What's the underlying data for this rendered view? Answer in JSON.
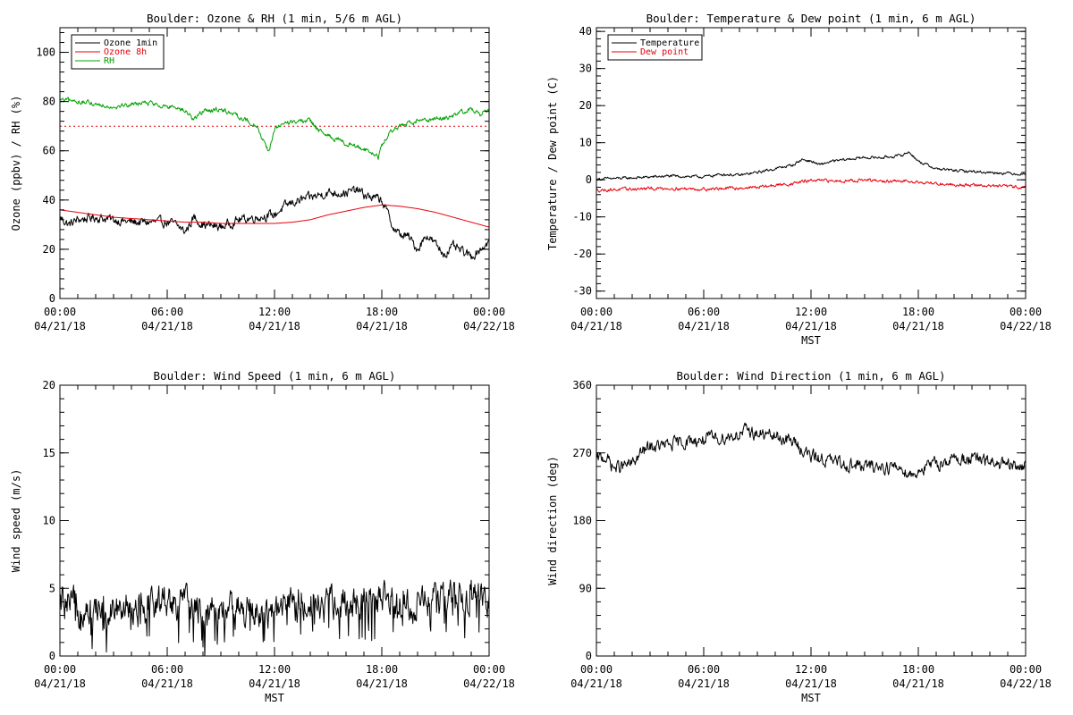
{
  "chart_data": [
    {
      "id": "ozone-rh",
      "type": "line",
      "title": "Boulder: Ozone & RH (1 min, 5/6 m AGL)",
      "xlabel": "",
      "ylabel": "Ozone (ppbv) / RH (%)",
      "xlim": [
        0,
        24
      ],
      "ylim": [
        0,
        110
      ],
      "x_ticks": [
        {
          "time": "00:00",
          "date": "04/21/18"
        },
        {
          "time": "06:00",
          "date": "04/21/18"
        },
        {
          "time": "12:00",
          "date": "04/21/18"
        },
        {
          "time": "18:00",
          "date": "04/21/18"
        },
        {
          "time": "00:00",
          "date": "04/22/18"
        }
      ],
      "y_ticks": [
        "0",
        "20",
        "40",
        "60",
        "80",
        "100"
      ],
      "legend_position": "top-left",
      "series": [
        {
          "name": "Ozone 1min",
          "color": "#000000",
          "dash": "",
          "noise": 1.5,
          "points": [
            [
              0,
              33
            ],
            [
              0.5,
              30
            ],
            [
              1,
              32
            ],
            [
              2,
              33
            ],
            [
              3,
              32
            ],
            [
              4,
              31
            ],
            [
              5,
              31
            ],
            [
              6,
              31
            ],
            [
              6.5,
              30
            ],
            [
              7,
              27
            ],
            [
              7.5,
              33
            ],
            [
              8,
              30
            ],
            [
              9,
              29
            ],
            [
              10,
              32
            ],
            [
              11,
              33
            ],
            [
              12,
              34
            ],
            [
              12.5,
              37
            ],
            [
              13,
              39
            ],
            [
              14,
              41
            ],
            [
              15,
              43
            ],
            [
              16,
              43
            ],
            [
              16.7,
              44
            ],
            [
              17,
              42
            ],
            [
              17.5,
              41
            ],
            [
              18,
              40
            ],
            [
              18.3,
              35
            ],
            [
              18.7,
              28
            ],
            [
              19,
              26
            ],
            [
              19.5,
              25
            ],
            [
              20,
              20
            ],
            [
              20.5,
              26
            ],
            [
              21,
              22
            ],
            [
              21.5,
              18
            ],
            [
              22,
              21
            ],
            [
              22.5,
              19
            ],
            [
              23,
              17
            ],
            [
              23.5,
              20
            ],
            [
              24,
              23
            ]
          ]
        },
        {
          "name": "Ozone 8h",
          "color": "#e8000b",
          "dash": "",
          "noise": 0,
          "points": [
            [
              0,
              36
            ],
            [
              1,
              35
            ],
            [
              2,
              34
            ],
            [
              3,
              33
            ],
            [
              4,
              32.5
            ],
            [
              5,
              32
            ],
            [
              6,
              31.5
            ],
            [
              7,
              31
            ],
            [
              8,
              31
            ],
            [
              9,
              30.5
            ],
            [
              10,
              30.5
            ],
            [
              11,
              30.5
            ],
            [
              12,
              30.5
            ],
            [
              13,
              31
            ],
            [
              14,
              32
            ],
            [
              15,
              34
            ],
            [
              16,
              35.5
            ],
            [
              17,
              37
            ],
            [
              18,
              38
            ],
            [
              19,
              37.5
            ],
            [
              20,
              36.5
            ],
            [
              21,
              35
            ],
            [
              22,
              33
            ],
            [
              23,
              31
            ],
            [
              24,
              29
            ]
          ]
        },
        {
          "name": "",
          "color": "#e8000b",
          "dash": "2,3",
          "noise": 0,
          "points": [
            [
              0,
              70
            ],
            [
              24,
              70
            ]
          ]
        },
        {
          "name": "RH",
          "color": "#00a000",
          "dash": "",
          "noise": 0.8,
          "points": [
            [
              0,
              80.5
            ],
            [
              1,
              80
            ],
            [
              2,
              79
            ],
            [
              3,
              78
            ],
            [
              4,
              79
            ],
            [
              5,
              79.5
            ],
            [
              6,
              78
            ],
            [
              7,
              76
            ],
            [
              7.5,
              73
            ],
            [
              8,
              76
            ],
            [
              9,
              77
            ],
            [
              10,
              74
            ],
            [
              11,
              70
            ],
            [
              11.5,
              62
            ],
            [
              11.7,
              60
            ],
            [
              12,
              69
            ],
            [
              13,
              72
            ],
            [
              14,
              72
            ],
            [
              14.5,
              68
            ],
            [
              15,
              66
            ],
            [
              16,
              63
            ],
            [
              17,
              61
            ],
            [
              17.5,
              59
            ],
            [
              17.8,
              57
            ],
            [
              18,
              62
            ],
            [
              18.5,
              68
            ],
            [
              19,
              70
            ],
            [
              20,
              72
            ],
            [
              21,
              73
            ],
            [
              22,
              74
            ],
            [
              22.5,
              76
            ],
            [
              23,
              77
            ],
            [
              23.5,
              75
            ],
            [
              24,
              77
            ]
          ]
        }
      ]
    },
    {
      "id": "temp-dew",
      "type": "line",
      "title": "Boulder: Temperature & Dew point (1 min, 6 m AGL)",
      "xlabel": "MST",
      "ylabel": "Temperature / Dew point (C)",
      "xlim": [
        0,
        24
      ],
      "ylim": [
        -32,
        41
      ],
      "x_ticks": [
        {
          "time": "00:00",
          "date": "04/21/18"
        },
        {
          "time": "06:00",
          "date": "04/21/18"
        },
        {
          "time": "12:00",
          "date": "04/21/18"
        },
        {
          "time": "18:00",
          "date": "04/21/18"
        },
        {
          "time": "00:00",
          "date": "04/22/18"
        }
      ],
      "y_ticks": [
        "-30",
        "-20",
        "-10",
        "0",
        "10",
        "20",
        "30",
        "40"
      ],
      "legend_position": "top-left",
      "series": [
        {
          "name": "Temperature",
          "color": "#000000",
          "dash": "",
          "noise": 0.3,
          "points": [
            [
              0,
              0.2
            ],
            [
              2,
              0.5
            ],
            [
              4,
              1
            ],
            [
              6,
              0.8
            ],
            [
              7,
              1.5
            ],
            [
              8,
              1.2
            ],
            [
              9,
              2
            ],
            [
              10,
              3
            ],
            [
              11,
              4
            ],
            [
              11.5,
              5.5
            ],
            [
              12,
              5
            ],
            [
              12.5,
              4
            ],
            [
              13,
              4.8
            ],
            [
              14,
              5.5
            ],
            [
              15,
              6
            ],
            [
              16,
              6
            ],
            [
              17,
              6.5
            ],
            [
              17.5,
              7.5
            ],
            [
              18,
              5
            ],
            [
              19,
              3
            ],
            [
              20,
              2.5
            ],
            [
              22,
              2
            ],
            [
              23,
              1.8
            ],
            [
              24,
              1.5
            ]
          ]
        },
        {
          "name": "Dew point",
          "color": "#e8000b",
          "dash": "",
          "noise": 0.35,
          "points": [
            [
              0,
              -2.8
            ],
            [
              2,
              -2.5
            ],
            [
              4,
              -2.3
            ],
            [
              6,
              -2.5
            ],
            [
              8,
              -2.2
            ],
            [
              9,
              -2
            ],
            [
              10,
              -1.5
            ],
            [
              11,
              -1
            ],
            [
              11.5,
              -0.5
            ],
            [
              12,
              -0.2
            ],
            [
              13,
              -0.3
            ],
            [
              14,
              -0.2
            ],
            [
              15,
              -0.1
            ],
            [
              16,
              -0.4
            ],
            [
              17,
              -0.5
            ],
            [
              17.5,
              -0.2
            ],
            [
              18,
              -0.6
            ],
            [
              19,
              -1
            ],
            [
              20,
              -1.3
            ],
            [
              22,
              -1.6
            ],
            [
              23,
              -1.8
            ],
            [
              24,
              -2
            ]
          ]
        }
      ]
    },
    {
      "id": "wind-speed",
      "type": "line",
      "title": "Boulder: Wind Speed (1 min, 6 m AGL)",
      "xlabel": "MST",
      "ylabel": "Wind speed (m/s)",
      "xlim": [
        0,
        24
      ],
      "ylim": [
        0,
        20
      ],
      "x_ticks": [
        {
          "time": "00:00",
          "date": "04/21/18"
        },
        {
          "time": "06:00",
          "date": "04/21/18"
        },
        {
          "time": "12:00",
          "date": "04/21/18"
        },
        {
          "time": "18:00",
          "date": "04/21/18"
        },
        {
          "time": "00:00",
          "date": "04/22/18"
        }
      ],
      "y_ticks": [
        "0",
        "5",
        "10",
        "15",
        "20"
      ],
      "legend_position": "",
      "series": [
        {
          "name": "",
          "color": "#000000",
          "dash": "",
          "noise": 1.0,
          "spikes": 1.5,
          "points": [
            [
              0,
              4
            ],
            [
              2,
              3.5
            ],
            [
              3,
              3.7
            ],
            [
              4,
              4
            ],
            [
              5,
              3.8
            ],
            [
              6,
              4.2
            ],
            [
              7,
              3.8
            ],
            [
              8,
              3.5
            ],
            [
              9,
              3.5
            ],
            [
              10,
              3.3
            ],
            [
              11,
              3.1
            ],
            [
              11.5,
              3
            ],
            [
              12,
              3.2
            ],
            [
              13,
              3.8
            ],
            [
              14,
              4
            ],
            [
              15,
              3.8
            ],
            [
              16,
              4
            ],
            [
              17,
              4.2
            ],
            [
              18,
              4
            ],
            [
              19,
              3.8
            ],
            [
              20,
              3.8
            ],
            [
              21,
              4
            ],
            [
              22,
              4.2
            ],
            [
              23,
              4.5
            ],
            [
              24,
              4.3
            ]
          ]
        }
      ]
    },
    {
      "id": "wind-direction",
      "type": "line",
      "title": "Boulder: Wind Direction (1 min, 6 m AGL)",
      "xlabel": "MST",
      "ylabel": "Wind direction (deg)",
      "xlim": [
        0,
        24
      ],
      "ylim": [
        0,
        360
      ],
      "x_ticks": [
        {
          "time": "00:00",
          "date": "04/21/18"
        },
        {
          "time": "06:00",
          "date": "04/21/18"
        },
        {
          "time": "12:00",
          "date": "04/21/18"
        },
        {
          "time": "18:00",
          "date": "04/21/18"
        },
        {
          "time": "00:00",
          "date": "04/22/18"
        }
      ],
      "y_ticks": [
        "0",
        "90",
        "180",
        "270",
        "360"
      ],
      "legend_position": "",
      "series": [
        {
          "name": "",
          "color": "#000000",
          "dash": "",
          "noise": 7,
          "points": [
            [
              0,
              260
            ],
            [
              0.5,
              265
            ],
            [
              1,
              250
            ],
            [
              2,
              255
            ],
            [
              2.5,
              270
            ],
            [
              3,
              278
            ],
            [
              4,
              280
            ],
            [
              5,
              285
            ],
            [
              6,
              288
            ],
            [
              7,
              290
            ],
            [
              8,
              295
            ],
            [
              8.5,
              300
            ],
            [
              9,
              295
            ],
            [
              10,
              292
            ],
            [
              11,
              285
            ],
            [
              11.5,
              275
            ],
            [
              12,
              265
            ],
            [
              13,
              260
            ],
            [
              14,
              255
            ],
            [
              15,
              252
            ],
            [
              16,
              252
            ],
            [
              17,
              250
            ],
            [
              17.8,
              240
            ],
            [
              18,
              248
            ],
            [
              19,
              255
            ],
            [
              20,
              262
            ],
            [
              21,
              262
            ],
            [
              22,
              258
            ],
            [
              23,
              252
            ],
            [
              24,
              252
            ]
          ]
        }
      ]
    }
  ]
}
